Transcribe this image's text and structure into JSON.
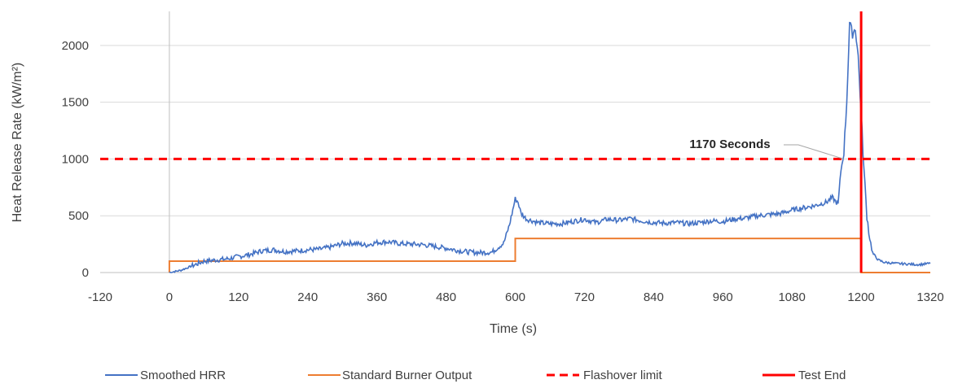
{
  "chart_data": {
    "type": "line",
    "title": "",
    "xlabel": "Time (s)",
    "ylabel": "Heat Release Rate (kW/m²)",
    "xlim": [
      -120,
      1320
    ],
    "ylim": [
      0,
      2300
    ],
    "x_ticks": [
      -120,
      0,
      120,
      240,
      360,
      480,
      600,
      720,
      840,
      960,
      1080,
      1200,
      1320
    ],
    "y_ticks": [
      0,
      500,
      1000,
      1500,
      2000
    ],
    "grid": "horizontal",
    "legend_position": "bottom",
    "series": [
      {
        "name": "Smoothed HRR",
        "color": "#4472C4",
        "style": "solid",
        "x": [
          0,
          20,
          40,
          60,
          80,
          100,
          120,
          140,
          160,
          180,
          200,
          220,
          240,
          260,
          280,
          300,
          320,
          340,
          360,
          380,
          400,
          420,
          440,
          460,
          480,
          500,
          520,
          540,
          560,
          580,
          590,
          600,
          605,
          610,
          620,
          640,
          660,
          680,
          700,
          720,
          740,
          760,
          780,
          800,
          820,
          840,
          860,
          880,
          900,
          920,
          940,
          960,
          980,
          1000,
          1020,
          1040,
          1060,
          1080,
          1100,
          1120,
          1140,
          1150,
          1160,
          1165,
          1170,
          1175,
          1180,
          1185,
          1190,
          1195,
          1200,
          1205,
          1210,
          1215,
          1220,
          1230,
          1240,
          1260,
          1280,
          1300,
          1320
        ],
        "y": [
          0,
          20,
          60,
          100,
          110,
          120,
          140,
          160,
          190,
          200,
          185,
          190,
          200,
          205,
          225,
          255,
          260,
          240,
          265,
          270,
          255,
          250,
          245,
          230,
          215,
          195,
          180,
          175,
          180,
          260,
          420,
          650,
          620,
          520,
          470,
          440,
          430,
          430,
          450,
          470,
          440,
          470,
          460,
          475,
          455,
          440,
          435,
          440,
          430,
          440,
          455,
          450,
          470,
          480,
          500,
          510,
          520,
          550,
          570,
          590,
          620,
          660,
          600,
          900,
          1050,
          1500,
          2200,
          2100,
          2150,
          1900,
          1400,
          900,
          500,
          300,
          170,
          110,
          90,
          80,
          75,
          70,
          80
        ]
      },
      {
        "name": "Standard Burner Output",
        "color": "#ED7D31",
        "style": "solid",
        "x": [
          0,
          0,
          600,
          600,
          1200,
          1200,
          1320
        ],
        "y": [
          0,
          100,
          100,
          300,
          300,
          0,
          0
        ]
      },
      {
        "name": "Flashover limit",
        "color": "#FF0000",
        "style": "dashed",
        "x": [
          -120,
          1320
        ],
        "y": [
          1000,
          1000
        ]
      },
      {
        "name": "Test End",
        "color": "#FF0000",
        "style": "solid",
        "x": [
          1200,
          1200
        ],
        "y": [
          0,
          2300
        ]
      }
    ],
    "annotations": [
      {
        "text": "1170 Seconds",
        "x": 1170,
        "y": 1000
      }
    ]
  }
}
